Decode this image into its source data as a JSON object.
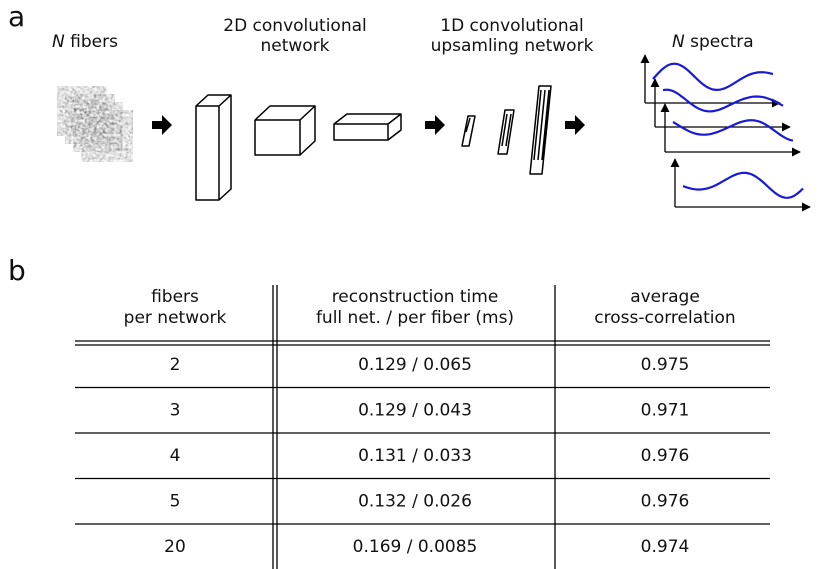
{
  "panel_a": {
    "label": "a",
    "input": {
      "var": "N",
      "text": "fibers"
    },
    "stage1": [
      "2D convolutional",
      "network"
    ],
    "stage2": [
      "1D convolutional",
      "upsamling network"
    ],
    "output": {
      "var": "N",
      "text": "spectra"
    }
  },
  "panel_b": {
    "label": "b",
    "table": {
      "header": [
        [
          "fibers",
          "per network"
        ],
        [
          "reconstruction time",
          "full net. / per fiber (ms)"
        ],
        [
          "average",
          "cross-correlation"
        ]
      ],
      "rows": [
        [
          "2",
          "0.129 / 0.065",
          "0.975"
        ],
        [
          "3",
          "0.129 / 0.043",
          "0.971"
        ],
        [
          "4",
          "0.131 / 0.033",
          "0.976"
        ],
        [
          "5",
          "0.132 / 0.026",
          "0.976"
        ],
        [
          "20",
          "0.169 / 0.0085",
          "0.974"
        ]
      ]
    }
  }
}
